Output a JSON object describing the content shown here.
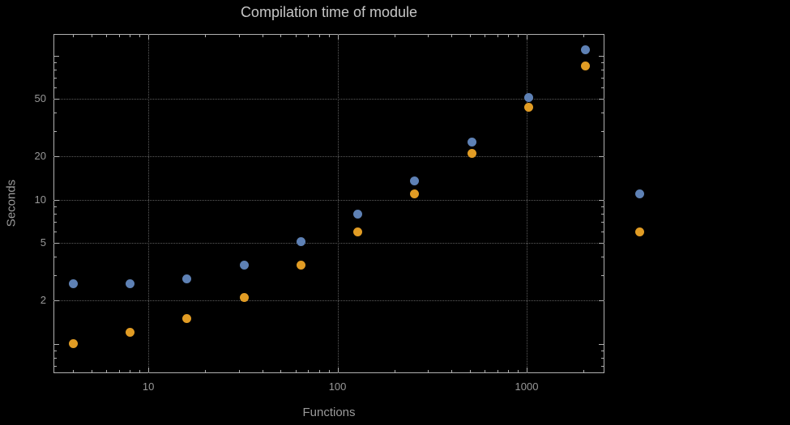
{
  "title": "Compilation time of module",
  "xlabel": "Functions",
  "ylabel": "Seconds",
  "colors": {
    "background": "#000000",
    "frame": "#b0b0b0",
    "grid": "#5c5c5c",
    "tick_text": "#989898",
    "title_text": "#c6c6c6",
    "series1": "#5e81b5",
    "series2": "#e19c24"
  },
  "chart_data": {
    "type": "scatter",
    "xscale": "log",
    "yscale": "log",
    "grid": true,
    "legend_position": "right-outside",
    "x": [
      4,
      8,
      16,
      32,
      64,
      128,
      256,
      512,
      1024,
      2048
    ],
    "series": [
      {
        "name": "series-blue",
        "color": "#5e81b5",
        "values": [
          2.6,
          2.6,
          2.8,
          3.5,
          5.1,
          7.9,
          13.5,
          25,
          51,
          110
        ]
      },
      {
        "name": "series-orange",
        "color": "#e19c24",
        "values": [
          1.0,
          1.2,
          1.5,
          2.1,
          3.5,
          6.0,
          11,
          21,
          44,
          85
        ]
      }
    ],
    "x_ticks": [
      10,
      100,
      1000
    ],
    "y_ticks": [
      2,
      5,
      10,
      20,
      50
    ],
    "xlim": [
      3.15,
      2577
    ],
    "ylim": [
      0.624,
      141
    ]
  },
  "legend": {
    "markers": [
      {
        "name": "legend-marker-blue",
        "color": "#5e81b5"
      },
      {
        "name": "legend-marker-orange",
        "color": "#e19c24"
      }
    ]
  }
}
